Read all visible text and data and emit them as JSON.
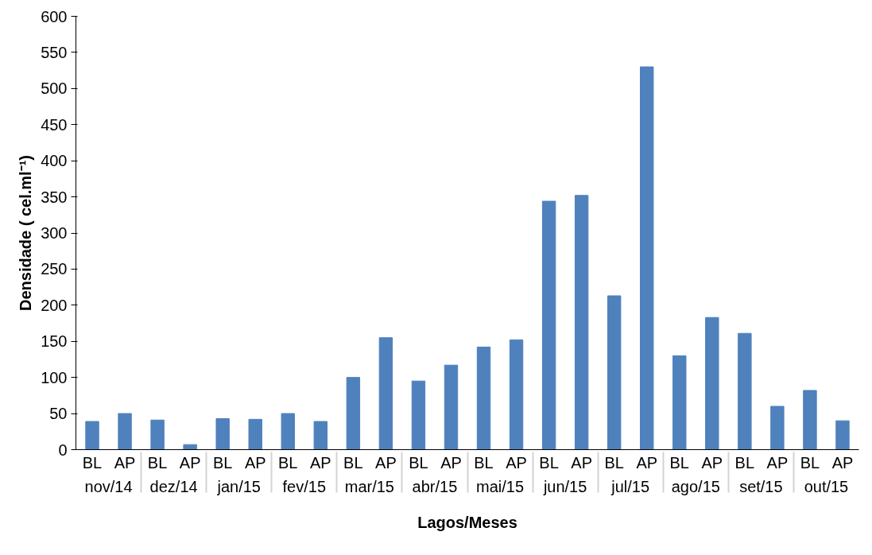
{
  "chart_data": {
    "type": "bar",
    "categories": [
      "BL",
      "AP",
      "BL",
      "AP",
      "BL",
      "AP",
      "BL",
      "AP",
      "BL",
      "AP",
      "BL",
      "AP",
      "BL",
      "AP",
      "BL",
      "AP",
      "BL",
      "AP",
      "BL",
      "AP",
      "BL",
      "AP",
      "BL",
      "AP"
    ],
    "values": [
      39,
      50,
      41,
      7,
      43,
      42,
      50,
      39,
      100,
      155,
      95,
      117,
      142,
      152,
      344,
      352,
      213,
      530,
      130,
      183,
      161,
      60,
      82,
      40
    ],
    "color": "#4f81bd",
    "xlabel": "Lagos/Meses",
    "ylabel": "Densidade ( cel.ml⁻¹)",
    "annotations": [
      "nov/14",
      "dez/14",
      "jan/15",
      "fev/15",
      "mar/15",
      "abr/15",
      "mai/15",
      "jun/15",
      "jul/15",
      "ago/15",
      "set/15",
      "out/15"
    ],
    "ylim": [
      0,
      600
    ],
    "yticks": [
      0,
      50,
      100,
      150,
      200,
      250,
      300,
      350,
      400,
      450,
      500,
      550,
      600
    ],
    "grid": false
  }
}
